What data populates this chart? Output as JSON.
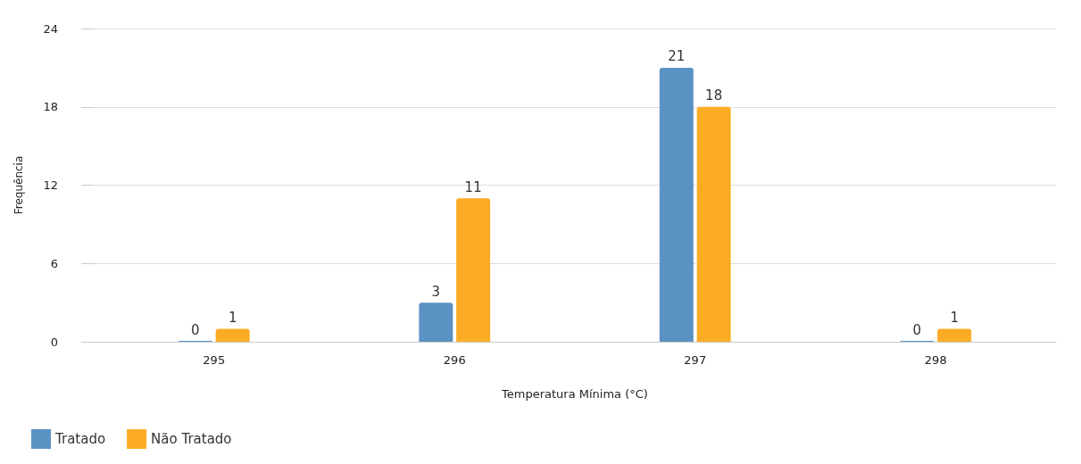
{
  "chart_data": {
    "type": "bar",
    "xlabel": "Temperatura Mínima (°C)",
    "ylabel": "Frequência",
    "categories": [
      "295",
      "296",
      "297",
      "298"
    ],
    "series": [
      {
        "name": "Tratado",
        "color": "#5b92c4",
        "values": [
          0,
          3,
          21,
          0
        ]
      },
      {
        "name": "Não Tratado",
        "color": "#fcac24",
        "values": [
          1,
          11,
          18,
          1
        ]
      }
    ],
    "ylim": [
      0,
      24
    ],
    "yticks": [
      0,
      6,
      12,
      18,
      24
    ],
    "grid": "y",
    "legend": "bottom left",
    "data_labels": true
  }
}
